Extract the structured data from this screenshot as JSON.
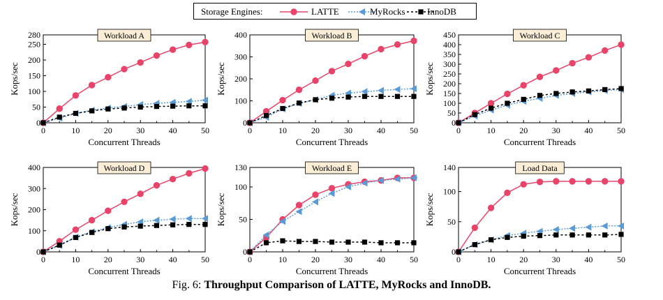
{
  "legend": {
    "title": "Storage Engines:",
    "entries": [
      "LATTE",
      "MyRocks",
      "InnoDB"
    ]
  },
  "caption": {
    "fig": "Fig. 6:",
    "text_before": "Throughput Comparison of",
    "latte": "LATTE",
    "text_after": ", MyRocks and InnoDB."
  },
  "colors": {
    "latte": "#e8446a",
    "myrocks": "#5b9bd5",
    "innodb": "#000000"
  },
  "chart_data": [
    {
      "type": "line",
      "title": "Workload A",
      "xlabel": "Concurrent Threads",
      "ylabel": "Kops/sec",
      "xlim": [
        0,
        50
      ],
      "ylim": [
        0,
        280
      ],
      "yticks": [
        0,
        50,
        100,
        150,
        200,
        250,
        280
      ],
      "xticks": [
        0,
        10,
        20,
        30,
        40,
        50
      ],
      "x": [
        0,
        5,
        10,
        15,
        20,
        25,
        30,
        35,
        40,
        45,
        50
      ],
      "series": [
        {
          "name": "LATTE",
          "values": [
            0,
            45,
            87,
            120,
            145,
            171,
            192,
            214,
            233,
            248,
            257
          ]
        },
        {
          "name": "MyRocks",
          "values": [
            0,
            15,
            30,
            40,
            47,
            52,
            58,
            62,
            65,
            68,
            72
          ]
        },
        {
          "name": "InnoDB",
          "values": [
            0,
            18,
            30,
            38,
            44,
            47,
            50,
            52,
            53,
            54,
            54
          ]
        }
      ]
    },
    {
      "type": "line",
      "title": "Workload B",
      "xlabel": "Concurrent Threads",
      "ylabel": "Kops/sec",
      "xlim": [
        0,
        50
      ],
      "ylim": [
        0,
        400
      ],
      "yticks": [
        0,
        100,
        200,
        300,
        400
      ],
      "xticks": [
        0,
        10,
        20,
        30,
        40,
        50
      ],
      "x": [
        0,
        5,
        10,
        15,
        20,
        25,
        30,
        35,
        40,
        45,
        50
      ],
      "series": [
        {
          "name": "LATTE",
          "values": [
            0,
            52,
            103,
            150,
            192,
            235,
            268,
            303,
            335,
            356,
            373
          ]
        },
        {
          "name": "MyRocks",
          "values": [
            0,
            25,
            63,
            88,
            105,
            125,
            135,
            142,
            147,
            152,
            155
          ]
        },
        {
          "name": "InnoDB",
          "values": [
            0,
            33,
            65,
            90,
            105,
            112,
            117,
            120,
            120,
            120,
            120
          ]
        }
      ]
    },
    {
      "type": "line",
      "title": "Workload C",
      "xlabel": "Concurrent Threads",
      "ylabel": "Kops/sec",
      "xlim": [
        0,
        50
      ],
      "ylim": [
        0,
        450
      ],
      "yticks": [
        0,
        50,
        100,
        150,
        200,
        250,
        300,
        350,
        400,
        450
      ],
      "xticks": [
        0,
        10,
        20,
        30,
        40,
        50
      ],
      "x": [
        0,
        5,
        10,
        15,
        20,
        25,
        30,
        35,
        40,
        45,
        50
      ],
      "series": [
        {
          "name": "LATTE",
          "values": [
            0,
            50,
            100,
            148,
            192,
            235,
            268,
            305,
            335,
            370,
            400
          ]
        },
        {
          "name": "MyRocks",
          "values": [
            0,
            35,
            65,
            90,
            110,
            125,
            140,
            150,
            158,
            165,
            170
          ]
        },
        {
          "name": "InnoDB",
          "values": [
            0,
            42,
            75,
            100,
            120,
            140,
            150,
            158,
            163,
            170,
            175
          ]
        }
      ]
    },
    {
      "type": "line",
      "title": "Workload D",
      "xlabel": "Concurrent Threads",
      "ylabel": "Kops/sec",
      "xlim": [
        0,
        50
      ],
      "ylim": [
        0,
        400
      ],
      "yticks": [
        0,
        100,
        200,
        300,
        400
      ],
      "xticks": [
        0,
        10,
        20,
        30,
        40,
        50
      ],
      "x": [
        0,
        5,
        10,
        15,
        20,
        25,
        30,
        35,
        40,
        45,
        50
      ],
      "series": [
        {
          "name": "LATTE",
          "values": [
            0,
            50,
            105,
            150,
            195,
            237,
            275,
            315,
            345,
            372,
            395
          ]
        },
        {
          "name": "MyRocks",
          "values": [
            0,
            30,
            70,
            95,
            115,
            130,
            142,
            150,
            155,
            158,
            158
          ]
        },
        {
          "name": "InnoDB",
          "values": [
            0,
            32,
            68,
            92,
            110,
            118,
            122,
            125,
            128,
            130,
            130
          ]
        }
      ]
    },
    {
      "type": "line",
      "title": "Workload E",
      "xlabel": "Concurrent Threads",
      "ylabel": "Kops/sec",
      "xlim": [
        0,
        50
      ],
      "ylim": [
        0,
        130
      ],
      "yticks": [
        0,
        50,
        100,
        130
      ],
      "xticks": [
        0,
        10,
        20,
        30,
        40,
        50
      ],
      "x": [
        0,
        5,
        10,
        15,
        20,
        25,
        30,
        35,
        40,
        45,
        50
      ],
      "series": [
        {
          "name": "LATTE",
          "values": [
            0,
            22,
            50,
            72,
            88,
            98,
            104,
            108,
            110,
            114,
            114
          ]
        },
        {
          "name": "MyRocks",
          "values": [
            0,
            26,
            47,
            62,
            77,
            90,
            100,
            106,
            110,
            112,
            114
          ]
        },
        {
          "name": "InnoDB",
          "values": [
            0,
            14,
            17,
            16,
            16,
            15,
            15,
            15,
            14,
            14,
            14
          ]
        }
      ]
    },
    {
      "type": "line",
      "title": "Load Data",
      "xlabel": "Concurrent Threads",
      "ylabel": "Kops/sec",
      "xlim": [
        0,
        50
      ],
      "ylim": [
        0,
        140
      ],
      "yticks": [
        0,
        50,
        100,
        140
      ],
      "xticks": [
        0,
        10,
        20,
        30,
        40,
        50
      ],
      "x": [
        0,
        5,
        10,
        15,
        20,
        25,
        30,
        35,
        40,
        45,
        50
      ],
      "series": [
        {
          "name": "LATTE",
          "values": [
            0,
            40,
            73,
            98,
            112,
            116,
            117,
            117,
            117,
            117,
            117
          ]
        },
        {
          "name": "MyRocks",
          "values": [
            0,
            12,
            20,
            27,
            31,
            34,
            37,
            39,
            41,
            43,
            43
          ]
        },
        {
          "name": "InnoDB",
          "values": [
            0,
            12,
            20,
            24,
            26,
            27,
            28,
            28,
            28,
            28,
            29
          ]
        }
      ]
    }
  ]
}
